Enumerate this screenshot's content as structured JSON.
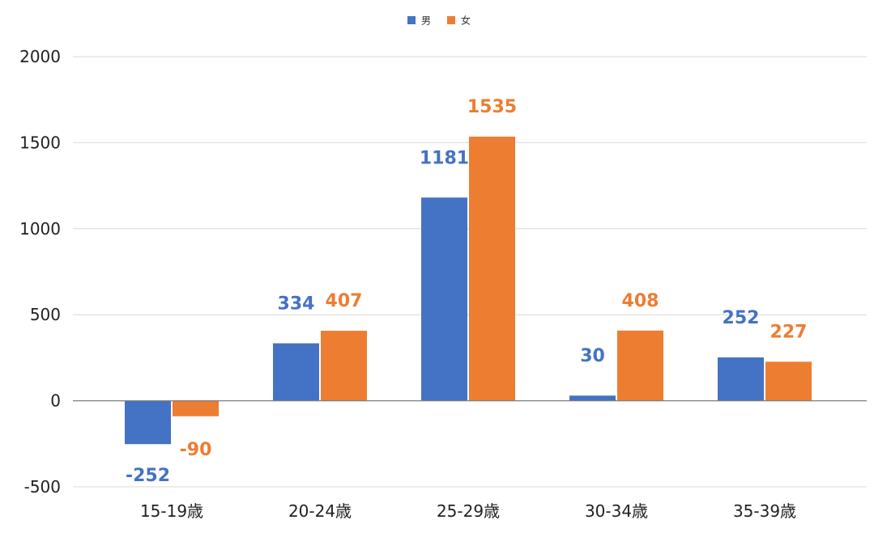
{
  "chart_data": {
    "type": "bar",
    "categories": [
      "15-19歳",
      "20-24歳",
      "25-29歳",
      "30-34歳",
      "35-39歳"
    ],
    "series": [
      {
        "name": "男",
        "values": [
          -252,
          334,
          1181,
          30,
          252
        ],
        "color": "#4472C4"
      },
      {
        "name": "女",
        "values": [
          -90,
          407,
          1535,
          408,
          227
        ],
        "color": "#ED7D31"
      }
    ],
    "ylim": [
      -500,
      2000
    ],
    "yticks": [
      -500,
      0,
      500,
      1000,
      1500,
      2000
    ],
    "grid": true,
    "legend_position": "top-center",
    "data_labels": true
  }
}
